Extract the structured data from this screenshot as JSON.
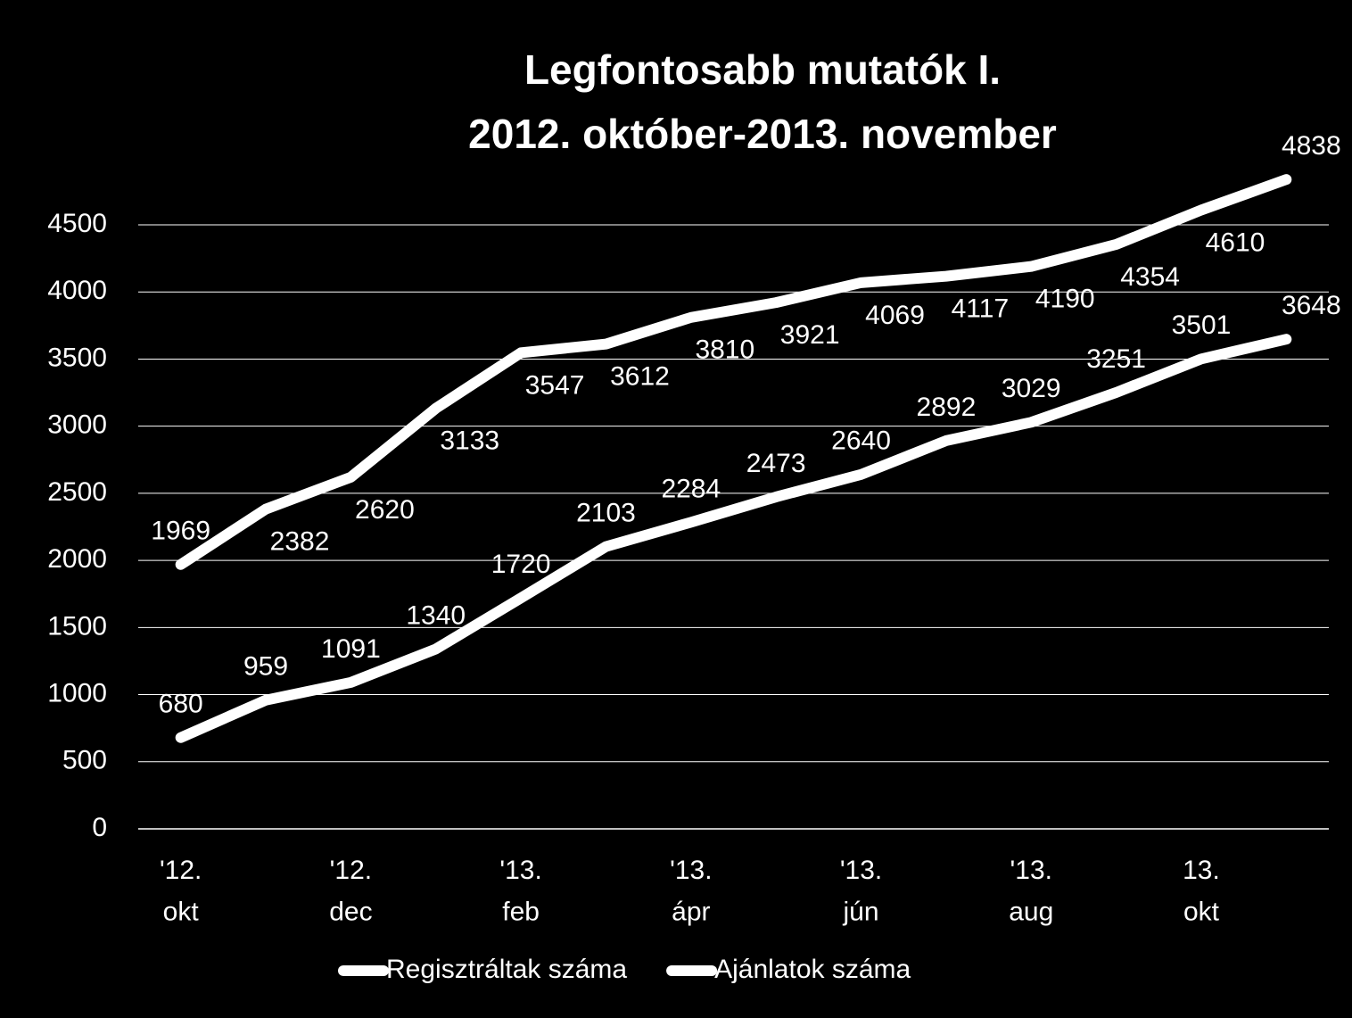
{
  "chart_data": {
    "type": "line",
    "title": "Legfontosabb mutatók I.",
    "subtitle": "2012. október-2013. november",
    "categories": [
      "'12.\nokt",
      null,
      "'12.\ndec",
      null,
      "'13.\nfeb",
      null,
      "'13.\nápr",
      null,
      "'13.\njún",
      null,
      "'13.\naug",
      null,
      "13.\nokt",
      null
    ],
    "series": [
      {
        "name": "Regisztráltak száma",
        "color": "#ffffff",
        "values": [
          1969,
          2382,
          2620,
          3133,
          3547,
          3612,
          3810,
          3921,
          4069,
          4117,
          4190,
          4354,
          4610,
          4838
        ]
      },
      {
        "name": "Ajánlatok száma",
        "color": "#ffffff",
        "values": [
          680,
          959,
          1091,
          1340,
          1720,
          2103,
          2284,
          2473,
          2640,
          2892,
          3029,
          3251,
          3501,
          3648
        ]
      }
    ],
    "ylim": [
      0,
      4500
    ],
    "yticks": [
      0,
      500,
      1000,
      1500,
      2000,
      2500,
      3000,
      3500,
      4000,
      4500
    ],
    "grid": true,
    "legend": "bottom"
  }
}
